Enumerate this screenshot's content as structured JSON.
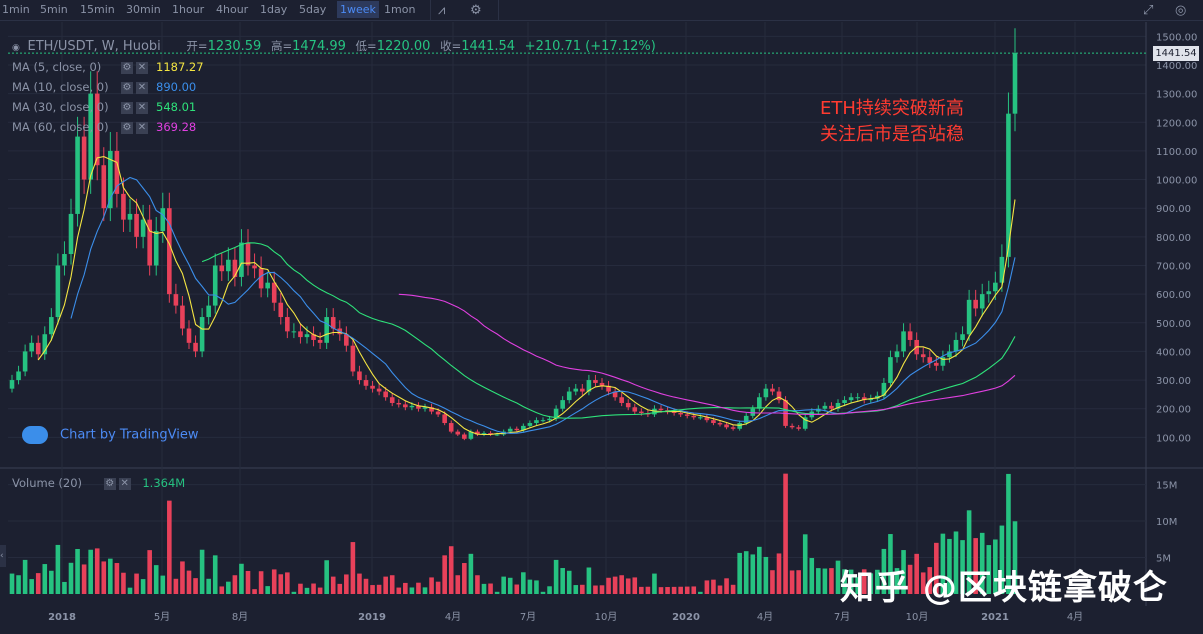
{
  "toolbar": {
    "timeframes": [
      "1min",
      "5min",
      "15min",
      "30min",
      "1hour",
      "4hour",
      "1day",
      "5day",
      "1week",
      "1mon"
    ],
    "active": "1week"
  },
  "header": {
    "symbol": "ETH/USDT, W, Huobi",
    "open_label": "开=",
    "open": "1230.59",
    "high_label": "高=",
    "high": "1474.99",
    "low_label": "低=",
    "low": "1220.00",
    "close_label": "收=",
    "close": "1441.54",
    "change": "+210.71 (+17.12%)"
  },
  "indicators": [
    {
      "label": "MA (5, close, 0)",
      "value": "1187.27",
      "color": "#f4e542"
    },
    {
      "label": "MA (10, close, 0)",
      "value": "890.00",
      "color": "#3b8eea"
    },
    {
      "label": "MA (30, close, 0)",
      "value": "548.01",
      "color": "#2ee27a"
    },
    {
      "label": "MA (60, close, 0)",
      "value": "369.28",
      "color": "#e040e0"
    }
  ],
  "volume": {
    "label": "Volume (20)",
    "value": "1.364M"
  },
  "annotation": [
    "ETH持续突破新高",
    "关注后市是否站稳"
  ],
  "watermark": "知乎 @区块链拿破仑",
  "tv_logo": "Chart by TradingView",
  "current_price_label": "1441.54",
  "colors": {
    "up": "#26c281",
    "down": "#e8415a",
    "bg": "#1c2030",
    "grid": "#262b3d"
  },
  "chart_data": {
    "type": "candlestick",
    "price_axis": {
      "min": 0,
      "max": 1550,
      "ticks": [
        100,
        200,
        300,
        400,
        500,
        600,
        700,
        800,
        900,
        1000,
        1100,
        1200,
        1300,
        1400,
        1500
      ],
      "tick_labels": [
        "100.00",
        "200.00",
        "300.00",
        "400.00",
        "500.00",
        "600.00",
        "700.00",
        "800.00",
        "900.00",
        "1000.00",
        "1100.00",
        "1200.00",
        "1300.00",
        "1400.00",
        "1500.00"
      ]
    },
    "volume_axis": {
      "ticks": [
        5,
        10,
        15
      ],
      "tick_labels": [
        "5M",
        "10M",
        "15M"
      ]
    },
    "x_axis": {
      "labels": [
        "2018",
        "5月",
        "8月",
        "2019",
        "4月",
        "7月",
        "10月",
        "2020",
        "4月",
        "7月",
        "10月",
        "2021",
        "4月"
      ]
    },
    "close_series": [
      300,
      330,
      400,
      430,
      390,
      460,
      520,
      700,
      740,
      880,
      1150,
      1000,
      1300,
      1050,
      900,
      1100,
      950,
      860,
      880,
      800,
      860,
      700,
      820,
      900,
      600,
      560,
      480,
      430,
      400,
      520,
      560,
      700,
      680,
      720,
      660,
      780,
      700,
      690,
      620,
      640,
      570,
      520,
      470,
      470,
      450,
      460,
      440,
      430,
      520,
      480,
      460,
      420,
      330,
      300,
      280,
      270,
      260,
      240,
      220,
      215,
      205,
      210,
      200,
      205,
      190,
      180,
      150,
      120,
      110,
      95,
      120,
      110,
      115,
      110,
      110,
      120,
      130,
      125,
      140,
      150,
      160,
      160,
      165,
      200,
      230,
      260,
      270,
      260,
      300,
      290,
      280,
      260,
      240,
      220,
      205,
      190,
      185,
      180,
      200,
      195,
      190,
      185,
      180,
      175,
      170,
      170,
      160,
      150,
      145,
      135,
      130,
      150,
      175,
      200,
      240,
      270,
      260,
      230,
      140,
      135,
      130,
      170,
      190,
      200,
      210,
      200,
      220,
      230,
      240,
      240,
      230,
      235,
      245,
      290,
      380,
      400,
      470,
      440,
      390,
      380,
      360,
      350,
      380,
      400,
      440,
      460,
      580,
      550,
      600,
      610,
      640,
      730,
      1230,
      1441.54
    ],
    "ma5_last": 1187.27,
    "ma10_last": 890.0,
    "ma30_last": 548.01,
    "ma60_last": 369.28
  }
}
